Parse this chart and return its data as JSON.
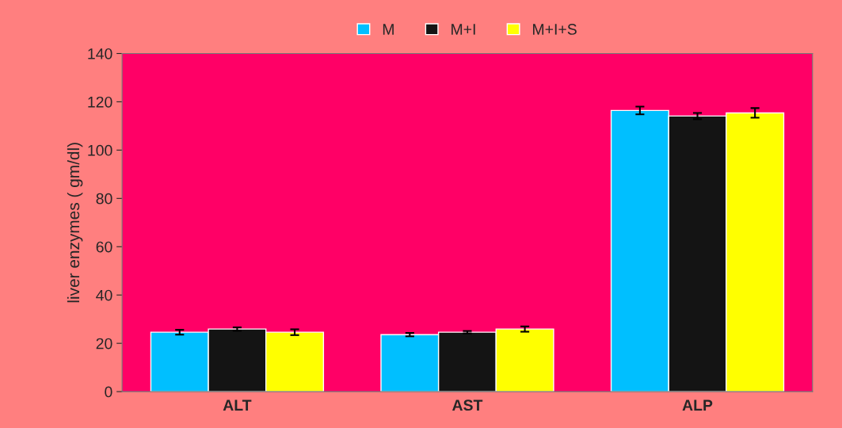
{
  "chart_data": {
    "type": "bar",
    "ylabel": "liver enzymes ( gm/dl)",
    "categories": [
      "ALT",
      "AST",
      "ALP"
    ],
    "series": [
      {
        "name": "M",
        "color": "#00bfff",
        "values": [
          24.6,
          23.6,
          116.4
        ],
        "errors": [
          1.0,
          0.7,
          1.6
        ]
      },
      {
        "name": "M+I",
        "color": "#141414",
        "values": [
          25.9,
          24.6,
          114.1
        ],
        "errors": [
          0.7,
          0.5,
          1.3
        ]
      },
      {
        "name": "M+I+S",
        "color": "#ffff00",
        "values": [
          24.6,
          25.9,
          115.4
        ],
        "errors": [
          1.2,
          1.1,
          2.0
        ]
      }
    ],
    "ylim": [
      0,
      140
    ],
    "yticks": [
      0,
      20,
      40,
      60,
      80,
      100,
      120,
      140
    ],
    "legend": "top",
    "grid": false
  }
}
